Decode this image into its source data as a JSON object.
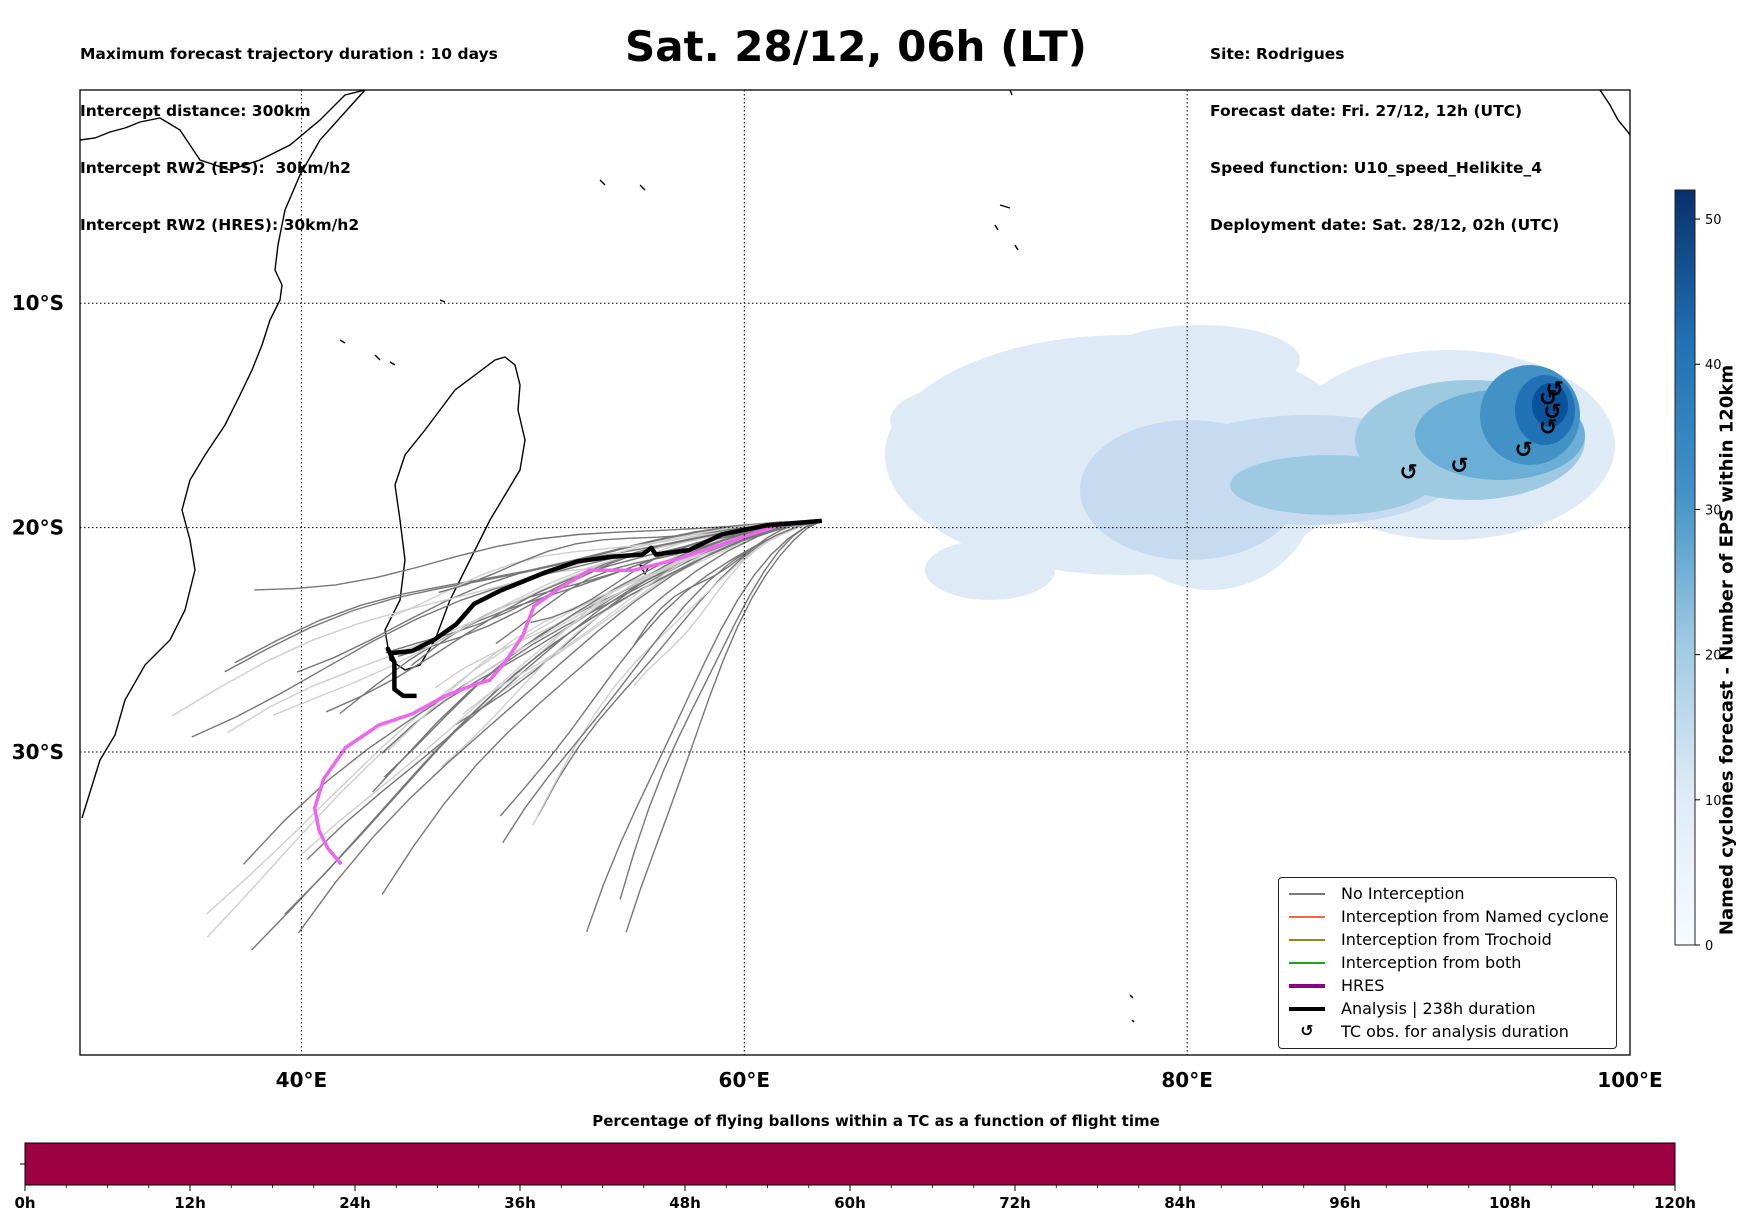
{
  "header_left": [
    "Maximum forecast trajectory duration : 10 days",
    "Intercept distance: 300km",
    "Intercept RW2 (EPS):  30km/h2",
    "Intercept RW2 (HRES): 30km/h2"
  ],
  "header_right": [
    "Site: Rodrigues",
    "Forecast date: Fri. 27/12, 12h (UTC)",
    "Speed function: U10_speed_Helikite_4",
    "Deployment date: Sat. 28/12, 02h (UTC)"
  ],
  "title": "Sat. 28/12, 06h (LT)",
  "map": {
    "lon_range": [
      30,
      100
    ],
    "lat_range": [
      -43.5,
      -0.5
    ],
    "lon_ticks": [
      {
        "value": 40,
        "label": "40°E"
      },
      {
        "value": 60,
        "label": "60°E"
      },
      {
        "value": 80,
        "label": "80°E"
      },
      {
        "value": 100,
        "label": "100°E"
      }
    ],
    "lat_ticks": [
      {
        "value": -10,
        "label": "10°S"
      },
      {
        "value": -20,
        "label": "20°S"
      },
      {
        "value": -30,
        "label": "30°S"
      }
    ],
    "grid": "dotted"
  },
  "legend": {
    "items": [
      {
        "label": "No Interception",
        "color": "#7a7a7a",
        "kind": "line-thin"
      },
      {
        "label": "Interception from Named cyclone",
        "color": "#ff6633",
        "kind": "line-thin"
      },
      {
        "label": "Interception from Trochoid",
        "color": "#8b8b1a",
        "kind": "line-thin"
      },
      {
        "label": "Interception from both",
        "color": "#22a022",
        "kind": "line-thin"
      },
      {
        "label": "HRES",
        "color": "#8b008b",
        "kind": "line-thick"
      },
      {
        "label": "Analysis | 238h duration",
        "color": "#000000",
        "kind": "line-thick"
      },
      {
        "label": "TC obs. for analysis duration",
        "color": "#000000",
        "kind": "symbol",
        "symbol": "↺"
      }
    ]
  },
  "colorbar": {
    "label": "Named cyclones forecast - Number of EPS within 120km",
    "min": 0,
    "max": 52,
    "ticks": [
      0,
      10,
      20,
      30,
      40,
      50
    ],
    "colormap": "Blues"
  },
  "timebar": {
    "title": "Percentage of flying ballons within a TC as a function of flight time",
    "color": "#9e0142",
    "ticks": [
      "0h",
      "12h",
      "24h",
      "36h",
      "48h",
      "60h",
      "72h",
      "84h",
      "96h",
      "108h",
      "120h"
    ]
  },
  "tc_obs": {
    "symbol": "↺",
    "points": [
      [
        90.0,
        -17.5
      ],
      [
        92.3,
        -17.2
      ],
      [
        95.2,
        -16.5
      ],
      [
        96.3,
        -15.5
      ],
      [
        96.5,
        -14.8
      ],
      [
        96.3,
        -14.2
      ],
      [
        96.6,
        -13.8
      ]
    ]
  },
  "trajectories": {
    "origin": [
      63.5,
      -19.7
    ],
    "analysis": [
      [
        63.5,
        -19.7
      ],
      [
        61,
        -19.9
      ],
      [
        59,
        -20.3
      ],
      [
        57.5,
        -21
      ],
      [
        56,
        -21.2
      ],
      [
        55.8,
        -20.9
      ],
      [
        55.4,
        -21.2
      ],
      [
        54,
        -21.3
      ],
      [
        52.5,
        -21.5
      ],
      [
        51,
        -22
      ],
      [
        49,
        -22.8
      ],
      [
        47.8,
        -23.4
      ],
      [
        47,
        -24.3
      ],
      [
        46,
        -25
      ],
      [
        45,
        -25.5
      ],
      [
        44,
        -25.6
      ],
      [
        43.9,
        -25.4
      ],
      [
        44.2,
        -26
      ],
      [
        44.2,
        -27.2
      ],
      [
        44.6,
        -27.5
      ],
      [
        45.2,
        -27.5
      ]
    ],
    "hres": [
      [
        63.5,
        -19.7
      ],
      [
        61.5,
        -19.9
      ],
      [
        60,
        -20.4
      ],
      [
        58.5,
        -20.9
      ],
      [
        57,
        -21.4
      ],
      [
        55,
        -21.9
      ],
      [
        53,
        -21.9
      ],
      [
        51.5,
        -22.8
      ],
      [
        50.5,
        -23.5
      ],
      [
        50,
        -24.8
      ],
      [
        49.2,
        -26
      ],
      [
        48.5,
        -26.8
      ],
      [
        47.8,
        -27
      ],
      [
        46.5,
        -27.5
      ],
      [
        45,
        -28.3
      ],
      [
        43.5,
        -28.8
      ],
      [
        42,
        -29.8
      ],
      [
        41,
        -31.2
      ],
      [
        40.6,
        -32.5
      ],
      [
        40.8,
        -33.5
      ],
      [
        41.2,
        -34.3
      ],
      [
        41.8,
        -35
      ]
    ]
  }
}
